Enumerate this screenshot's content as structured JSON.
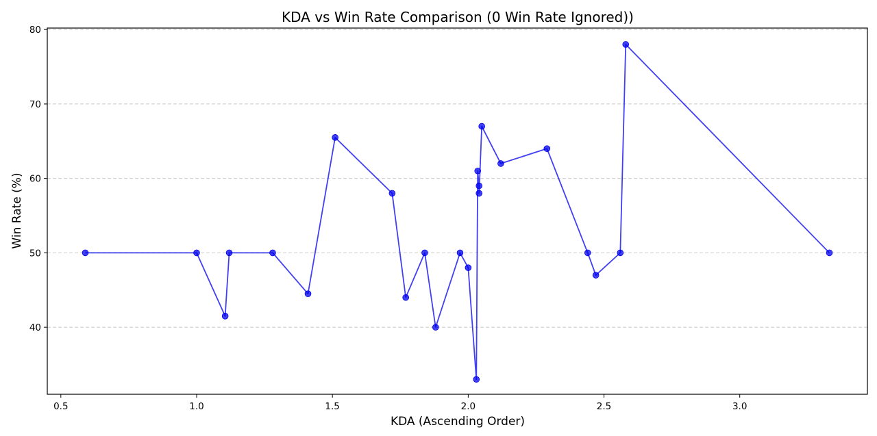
{
  "chart_data": {
    "type": "line",
    "title": "KDA vs Win Rate Comparison (0 Win Rate Ignored))",
    "xlabel": "KDA (Ascending Order)",
    "ylabel": "Win Rate (%)",
    "xlim": [
      0.45,
      3.47
    ],
    "ylim": [
      31,
      80.2
    ],
    "xticks": [
      0.5,
      1.0,
      1.5,
      2.0,
      2.5,
      3.0
    ],
    "xtick_labels": [
      "0.5",
      "1.0",
      "1.5",
      "2.0",
      "2.5",
      "3.0"
    ],
    "yticks": [
      40,
      50,
      60,
      70,
      80
    ],
    "ytick_labels": [
      "40",
      "50",
      "60",
      "70",
      "80"
    ],
    "grid": "y-dashed",
    "color": "#0000ee",
    "series": [
      {
        "x": [
          0.59,
          1.0,
          1.105,
          1.12,
          1.28,
          1.41,
          1.51,
          1.72,
          1.77,
          1.84,
          1.88,
          1.97,
          2.0,
          2.03,
          2.035,
          2.04,
          2.04,
          2.05,
          2.12,
          2.29,
          2.44,
          2.47,
          2.56,
          2.58,
          3.33
        ],
        "y": [
          50,
          50,
          41.5,
          50,
          50,
          44.5,
          65.5,
          58,
          44,
          50,
          40,
          50,
          48,
          33,
          61,
          59,
          58,
          67,
          62,
          64,
          50,
          47,
          50,
          78,
          50
        ]
      }
    ]
  }
}
